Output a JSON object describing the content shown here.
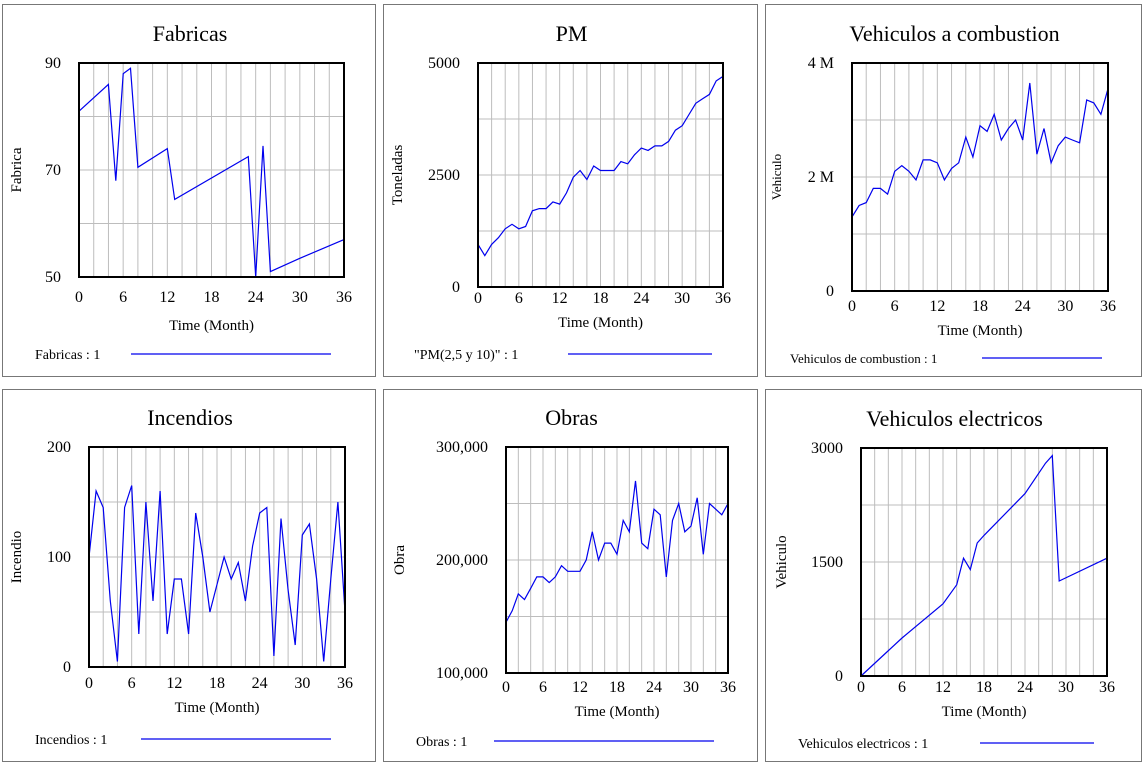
{
  "series_color": "#0000ee",
  "chart_data": [
    {
      "type": "line",
      "title": "Fabricas",
      "xlabel": "Time (Month)",
      "ylabel": "Fabrica",
      "xlim": [
        0,
        36
      ],
      "ylim": [
        50,
        90
      ],
      "yticks": [
        50,
        70,
        90
      ],
      "ytick_labels": [
        "50",
        "70",
        "90"
      ],
      "xticks": [
        0,
        6,
        12,
        18,
        24,
        30,
        36
      ],
      "xtick_labels": [
        "0",
        "6",
        "12",
        "18",
        "24",
        "30",
        "36"
      ],
      "legend": "Fabricas : 1",
      "series": [
        {
          "name": "Fabricas : 1",
          "x": [
            0,
            4,
            5,
            6,
            7,
            8,
            12,
            13,
            23,
            24,
            25,
            26,
            30,
            36
          ],
          "y": [
            81,
            86,
            68,
            88,
            89,
            70.5,
            74,
            64.5,
            72.5,
            50,
            74.5,
            51,
            53.5,
            57
          ]
        }
      ]
    },
    {
      "type": "line",
      "title": "PM",
      "xlabel": "Time (Month)",
      "ylabel": "Toneladas",
      "xlim": [
        0,
        36
      ],
      "ylim": [
        0,
        5000
      ],
      "yticks": [
        0,
        2500,
        5000
      ],
      "ytick_labels": [
        "0",
        "2500",
        "5000"
      ],
      "xticks": [
        0,
        6,
        12,
        18,
        24,
        30,
        36
      ],
      "xtick_labels": [
        "0",
        "6",
        "12",
        "18",
        "24",
        "30",
        "36"
      ],
      "legend": "\"PM(2,5 y 10)\" : 1",
      "series": [
        {
          "name": "\"PM(2,5 y 10)\" : 1",
          "x": [
            0,
            1,
            2,
            3,
            4,
            5,
            6,
            7,
            8,
            9,
            10,
            11,
            12,
            13,
            14,
            15,
            16,
            17,
            18,
            19,
            20,
            21,
            22,
            23,
            24,
            25,
            26,
            27,
            28,
            29,
            30,
            31,
            32,
            33,
            34,
            35,
            36
          ],
          "y": [
            950,
            700,
            950,
            1100,
            1300,
            1400,
            1300,
            1350,
            1700,
            1750,
            1750,
            1900,
            1850,
            2100,
            2450,
            2600,
            2400,
            2700,
            2600,
            2600,
            2600,
            2800,
            2750,
            2950,
            3100,
            3050,
            3150,
            3150,
            3250,
            3500,
            3600,
            3850,
            4100,
            4200,
            4300,
            4600,
            4700
          ]
        }
      ]
    },
    {
      "type": "line",
      "title": "Vehiculos a combustion",
      "xlabel": "Time (Month)",
      "ylabel": "Vehiculo",
      "xlim": [
        0,
        36
      ],
      "ylim": [
        0,
        4000000
      ],
      "yticks": [
        0,
        2000000,
        4000000
      ],
      "ytick_labels": [
        "0",
        "2 M",
        "4 M"
      ],
      "xticks": [
        0,
        6,
        12,
        18,
        24,
        30,
        36
      ],
      "xtick_labels": [
        "0",
        "6",
        "12",
        "18",
        "24",
        "30",
        "36"
      ],
      "legend": "Vehiculos de combustion : 1",
      "series": [
        {
          "name": "Vehiculos de combustion : 1",
          "x": [
            0,
            1,
            2,
            3,
            4,
            5,
            6,
            7,
            8,
            9,
            10,
            11,
            12,
            13,
            14,
            15,
            16,
            17,
            18,
            19,
            20,
            21,
            22,
            23,
            24,
            25,
            26,
            27,
            28,
            29,
            30,
            31,
            32,
            33,
            34,
            35,
            36
          ],
          "y": [
            1300000,
            1500000,
            1550000,
            1800000,
            1800000,
            1700000,
            2100000,
            2200000,
            2100000,
            1950000,
            2300000,
            2300000,
            2250000,
            1950000,
            2150000,
            2250000,
            2700000,
            2350000,
            2900000,
            2800000,
            3100000,
            2650000,
            2850000,
            3000000,
            2650000,
            3650000,
            2400000,
            2850000,
            2250000,
            2550000,
            2700000,
            2650000,
            2600000,
            3350000,
            3300000,
            3100000,
            3550000
          ]
        }
      ]
    },
    {
      "type": "line",
      "title": "Incendios",
      "xlabel": "Time (Month)",
      "ylabel": "Incendio",
      "xlim": [
        0,
        36
      ],
      "ylim": [
        0,
        200
      ],
      "yticks": [
        0,
        100,
        200
      ],
      "ytick_labels": [
        "0",
        "100",
        "200"
      ],
      "xticks": [
        0,
        6,
        12,
        18,
        24,
        30,
        36
      ],
      "xtick_labels": [
        "0",
        "6",
        "12",
        "18",
        "24",
        "30",
        "36"
      ],
      "legend": "Incendios : 1",
      "series": [
        {
          "name": "Incendios : 1",
          "x": [
            0,
            1,
            2,
            3,
            4,
            5,
            6,
            7,
            8,
            9,
            10,
            11,
            12,
            13,
            14,
            15,
            16,
            17,
            18,
            19,
            20,
            21,
            22,
            23,
            24,
            25,
            26,
            27,
            28,
            29,
            30,
            31,
            32,
            33,
            34,
            35,
            36
          ],
          "y": [
            100,
            160,
            145,
            60,
            5,
            145,
            165,
            30,
            150,
            60,
            160,
            30,
            80,
            80,
            30,
            140,
            100,
            50,
            75,
            100,
            80,
            95,
            60,
            110,
            140,
            145,
            10,
            135,
            70,
            20,
            120,
            130,
            80,
            5,
            80,
            150,
            50
          ]
        }
      ]
    },
    {
      "type": "line",
      "title": "Obras",
      "xlabel": "Time (Month)",
      "ylabel": "Obra",
      "xlim": [
        0,
        36
      ],
      "ylim": [
        100000,
        300000
      ],
      "yticks": [
        100000,
        200000,
        300000
      ],
      "ytick_labels": [
        "100,000",
        "200,000",
        "300,000"
      ],
      "xticks": [
        0,
        6,
        12,
        18,
        24,
        30,
        36
      ],
      "xtick_labels": [
        "0",
        "6",
        "12",
        "18",
        "24",
        "30",
        "36"
      ],
      "legend": "Obras : 1",
      "series": [
        {
          "name": "Obras : 1",
          "x": [
            0,
            1,
            2,
            3,
            4,
            5,
            6,
            7,
            8,
            9,
            10,
            11,
            12,
            13,
            14,
            15,
            16,
            17,
            18,
            19,
            20,
            21,
            22,
            23,
            24,
            25,
            26,
            27,
            28,
            29,
            30,
            31,
            32,
            33,
            34,
            35,
            36
          ],
          "y": [
            145000,
            155000,
            170000,
            165000,
            175000,
            185000,
            185000,
            180000,
            185000,
            195000,
            190000,
            190000,
            190000,
            200000,
            225000,
            200000,
            215000,
            215000,
            205000,
            235000,
            225000,
            270000,
            215000,
            210000,
            245000,
            240000,
            185000,
            235000,
            250000,
            225000,
            230000,
            255000,
            205000,
            250000,
            245000,
            240000,
            250000
          ]
        }
      ]
    },
    {
      "type": "line",
      "title": "Vehiculos electricos",
      "xlabel": "Time (Month)",
      "ylabel": "Vehiculo",
      "xlim": [
        0,
        36
      ],
      "ylim": [
        0,
        3000
      ],
      "yticks": [
        0,
        1500,
        3000
      ],
      "ytick_labels": [
        "0",
        "1500",
        "3000"
      ],
      "xticks": [
        0,
        6,
        12,
        18,
        24,
        30,
        36
      ],
      "xtick_labels": [
        "0",
        "6",
        "12",
        "18",
        "24",
        "30",
        "36"
      ],
      "legend": "Vehiculos electricos : 1",
      "series": [
        {
          "name": "Vehiculos electricos : 1",
          "x": [
            0,
            6,
            12,
            14,
            15,
            16,
            17,
            18,
            24,
            27,
            28,
            29,
            36
          ],
          "y": [
            0,
            500,
            950,
            1200,
            1550,
            1400,
            1750,
            1850,
            2400,
            2800,
            2900,
            1250,
            1550
          ]
        }
      ]
    }
  ]
}
